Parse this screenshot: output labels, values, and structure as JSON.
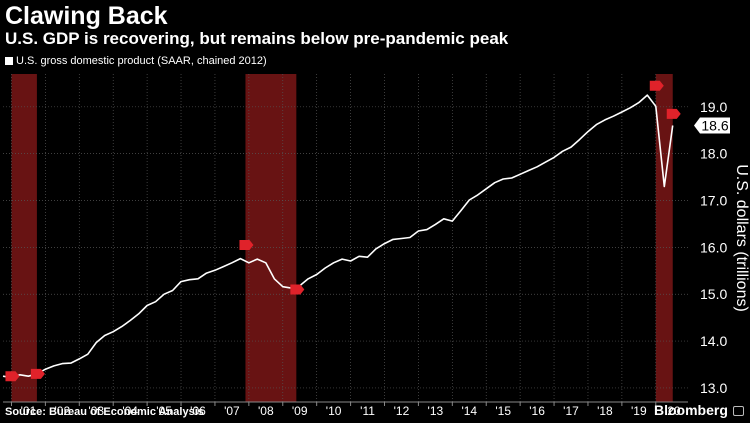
{
  "header": {
    "title": "Clawing Back",
    "subtitle": "U.S. GDP is recovering, but remains below pre-pandemic peak"
  },
  "legend": {
    "label": "U.S. gross domestic product (SAAR, chained 2012)"
  },
  "footer": {
    "source": "Source: Bureau of Economic Analysis",
    "brand": "Bloomberg"
  },
  "colors": {
    "background": "#000000",
    "line": "#ffffff",
    "recession": "#8b1a1a",
    "marker": "#e0222a"
  },
  "chart_data": {
    "type": "line",
    "title": "Clawing Back",
    "subtitle": "U.S. GDP is recovering, but remains below pre-pandemic peak",
    "ylabel": "U.S. dollars (trillions)",
    "xlabel": "",
    "ylim": [
      12.7,
      19.7
    ],
    "xlim": [
      2000.75,
      2020.95
    ],
    "yticks": [
      13.0,
      14.0,
      15.0,
      16.0,
      17.0,
      18.0,
      19.0
    ],
    "ytick_labels": [
      "13.0",
      "14.0",
      "15.0",
      "16.0",
      "17.0",
      "18.0",
      "19.0"
    ],
    "xtick_labels": [
      "'01",
      "'02",
      "'03",
      "'04",
      "'05",
      "'06",
      "'07",
      "'08",
      "'09",
      "'10",
      "'11",
      "'12",
      "'13",
      "'14",
      "'15",
      "'16",
      "'17",
      "'18",
      "'19",
      "'20"
    ],
    "last_value_label": "18.6",
    "grid": true,
    "legend_position": "top-left",
    "recessions": [
      [
        2001.0,
        2001.75
      ],
      [
        2007.9,
        2009.4
      ],
      [
        2020.0,
        2020.5
      ]
    ],
    "series": [
      {
        "name": "U.S. gross domestic product (SAAR, chained 2012)",
        "x": [
          2000.75,
          2001.0,
          2001.25,
          2001.5,
          2001.75,
          2002.0,
          2002.25,
          2002.5,
          2002.75,
          2003.0,
          2003.25,
          2003.5,
          2003.75,
          2004.0,
          2004.25,
          2004.5,
          2004.75,
          2005.0,
          2005.25,
          2005.5,
          2005.75,
          2006.0,
          2006.25,
          2006.5,
          2006.75,
          2007.0,
          2007.25,
          2007.5,
          2007.75,
          2008.0,
          2008.25,
          2008.5,
          2008.75,
          2009.0,
          2009.25,
          2009.5,
          2009.75,
          2010.0,
          2010.25,
          2010.5,
          2010.75,
          2011.0,
          2011.25,
          2011.5,
          2011.75,
          2012.0,
          2012.25,
          2012.5,
          2012.75,
          2013.0,
          2013.25,
          2013.5,
          2013.75,
          2014.0,
          2014.25,
          2014.5,
          2014.75,
          2015.0,
          2015.25,
          2015.5,
          2015.75,
          2016.0,
          2016.25,
          2016.5,
          2016.75,
          2017.0,
          2017.25,
          2017.5,
          2017.75,
          2018.0,
          2018.25,
          2018.5,
          2018.75,
          2019.0,
          2019.25,
          2019.5,
          2019.75,
          2020.0,
          2020.25,
          2020.5
        ],
        "values": [
          13.25,
          13.22,
          13.28,
          13.25,
          13.3,
          13.4,
          13.47,
          13.52,
          13.53,
          13.62,
          13.72,
          13.97,
          14.12,
          14.2,
          14.31,
          14.44,
          14.58,
          14.76,
          14.84,
          15.0,
          15.08,
          15.27,
          15.31,
          15.33,
          15.45,
          15.51,
          15.59,
          15.67,
          15.76,
          15.67,
          15.75,
          15.67,
          15.33,
          15.16,
          15.13,
          15.18,
          15.33,
          15.42,
          15.56,
          15.67,
          15.75,
          15.71,
          15.81,
          15.79,
          15.97,
          16.08,
          16.17,
          16.19,
          16.21,
          16.35,
          16.38,
          16.49,
          16.61,
          16.56,
          16.78,
          17.01,
          17.12,
          17.25,
          17.38,
          17.46,
          17.48,
          17.56,
          17.64,
          17.72,
          17.82,
          17.92,
          18.05,
          18.14,
          18.3,
          18.47,
          18.62,
          18.72,
          18.8,
          18.89,
          18.98,
          19.09,
          19.25,
          19.01,
          17.3,
          18.6
        ]
      }
    ],
    "annotations": [
      {
        "x": 2001.0,
        "y": 13.25,
        "type": "recession-marker"
      },
      {
        "x": 2001.75,
        "y": 13.3,
        "type": "recession-marker"
      },
      {
        "x": 2007.9,
        "y": 16.05,
        "type": "recession-marker"
      },
      {
        "x": 2009.4,
        "y": 15.1,
        "type": "recession-marker"
      },
      {
        "x": 2020.0,
        "y": 19.45,
        "type": "recession-marker"
      },
      {
        "x": 2020.5,
        "y": 18.85,
        "type": "recession-marker"
      }
    ]
  }
}
